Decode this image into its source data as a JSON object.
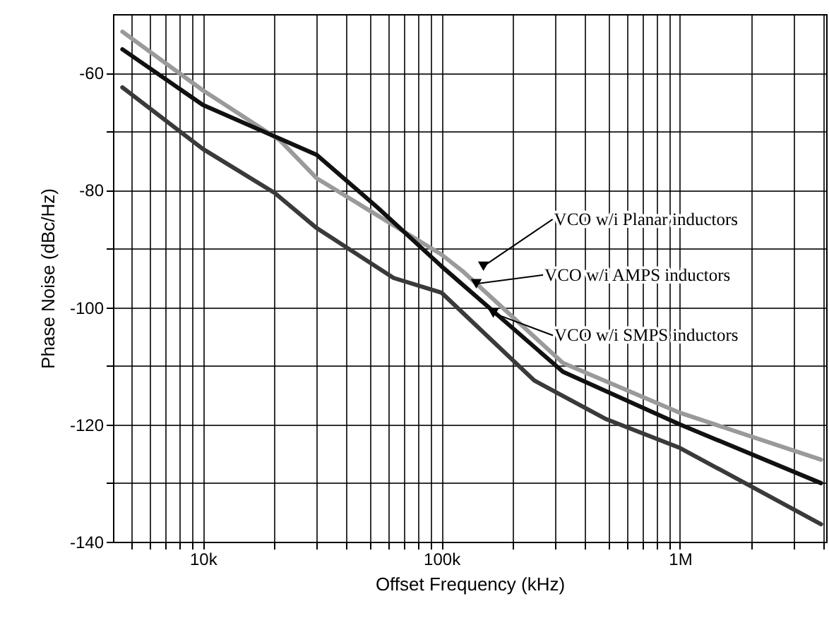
{
  "chart_data": {
    "type": "line",
    "xlabel": "Offset Frequency (kHz)",
    "ylabel": "Phase Noise (dBc/Hz)",
    "log": "x",
    "grid": true,
    "xlim": [
      4200,
      4100000
    ],
    "ylim": [
      -140,
      -50
    ],
    "xticks": [
      {
        "value": 5000,
        "label": null
      },
      {
        "value": 6000,
        "label": null
      },
      {
        "value": 7000,
        "label": null
      },
      {
        "value": 8000,
        "label": null
      },
      {
        "value": 9000,
        "label": null
      },
      {
        "value": 10000,
        "label": "10k"
      },
      {
        "value": 20000,
        "label": null
      },
      {
        "value": 30000,
        "label": null
      },
      {
        "value": 40000,
        "label": null
      },
      {
        "value": 50000,
        "label": null
      },
      {
        "value": 60000,
        "label": null
      },
      {
        "value": 70000,
        "label": null
      },
      {
        "value": 80000,
        "label": null
      },
      {
        "value": 90000,
        "label": null
      },
      {
        "value": 100000,
        "label": "100k"
      },
      {
        "value": 200000,
        "label": null
      },
      {
        "value": 300000,
        "label": null
      },
      {
        "value": 400000,
        "label": null
      },
      {
        "value": 500000,
        "label": null
      },
      {
        "value": 600000,
        "label": null
      },
      {
        "value": 700000,
        "label": null
      },
      {
        "value": 800000,
        "label": null
      },
      {
        "value": 900000,
        "label": null
      },
      {
        "value": 1000000,
        "label": "1M"
      },
      {
        "value": 2000000,
        "label": null
      },
      {
        "value": 3000000,
        "label": null
      },
      {
        "value": 4000000,
        "label": null
      }
    ],
    "yticks": [
      -140,
      {
        "value": -130,
        "label": null
      },
      -120,
      {
        "value": -110,
        "label": null
      },
      -100,
      {
        "value": -90,
        "label": null
      },
      -80,
      {
        "value": -70,
        "label": null
      },
      -60
    ],
    "series": [
      {
        "color": "#9a9a9a",
        "x": [
          4600,
          10000,
          21000,
          30000,
          100000,
          124000,
          323000,
          1000000,
          3900000
        ],
        "values": [
          -53,
          -63,
          -71.5,
          -78,
          -91,
          -94,
          -109.5,
          -118,
          -126
        ]
      },
      {
        "color": "#111111",
        "x": [
          4600,
          10000,
          30000,
          54000,
          100000,
          323000,
          1000000,
          3900000
        ],
        "values": [
          -56,
          -65.5,
          -74,
          -83,
          -93,
          -111,
          -120,
          -130
        ]
      },
      {
        "color": "#3a3a3a",
        "x": [
          4600,
          10000,
          20000,
          30000,
          63000,
          100000,
          245000,
          485000,
          1000000,
          3900000
        ],
        "values": [
          -62.5,
          -73,
          -80.5,
          -86.5,
          -95,
          -97.5,
          -112.5,
          -119,
          -124,
          -137
        ]
      }
    ],
    "annotations": [
      {
        "text": "VCO w/i Planar inductors",
        "x": 150000,
        "y": -93
      },
      {
        "text": "VCO w/i AMPS inductors",
        "x": 140000,
        "y": -96
      },
      {
        "text": "VCO w/i SMPS inductors",
        "x": 165000,
        "y": -101
      }
    ]
  }
}
